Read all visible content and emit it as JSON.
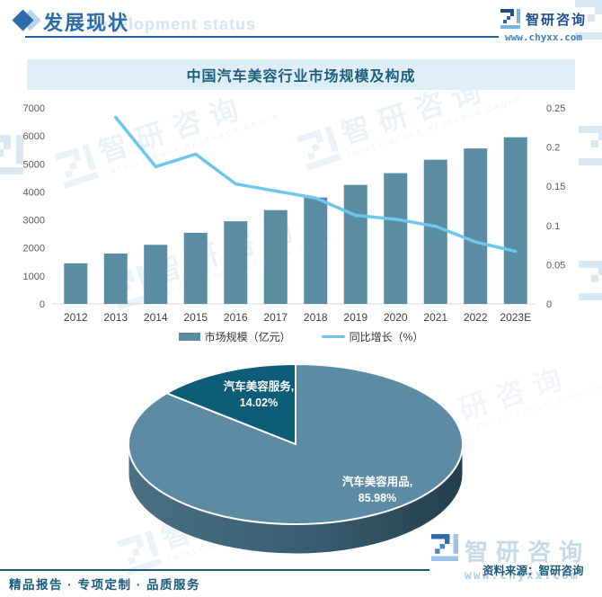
{
  "header": {
    "title_cn": "发展现状",
    "title_en": "Development status"
  },
  "brand": {
    "name": "智研咨询",
    "url": "www.chyxx.com",
    "watermark_en": "INTELLIGENCE RESEARCH GROUP"
  },
  "title_banner": "中国汽车美容行业市场规模及构成",
  "chart_data": [
    {
      "type": "bar",
      "title": "中国汽车美容行业市场规模及构成",
      "categories": [
        "2012",
        "2013",
        "2014",
        "2015",
        "2016",
        "2017",
        "2018",
        "2019",
        "2020",
        "2021",
        "2022",
        "2023E"
      ],
      "series": [
        {
          "name": "市场规模（亿元）",
          "type": "bar",
          "axis": "left",
          "color": "#5a8da1",
          "values": [
            1450,
            1800,
            2110,
            2540,
            2950,
            3350,
            3800,
            4250,
            4670,
            5150,
            5550,
            5950
          ]
        },
        {
          "name": "同比增长（%）",
          "type": "line",
          "axis": "right",
          "color": "#6ec6ed",
          "values": [
            null,
            0.238,
            0.175,
            0.191,
            0.153,
            0.144,
            0.135,
            0.113,
            0.108,
            0.099,
            0.079,
            0.067
          ]
        }
      ],
      "left_axis": {
        "min": 0,
        "max": 7000,
        "step": 1000
      },
      "right_axis": {
        "min": 0,
        "max": 0.25,
        "step": 0.05
      },
      "grid": false,
      "legend_position": "bottom"
    },
    {
      "type": "pie",
      "labels": [
        "汽车美容服务",
        "汽车美容用品"
      ],
      "values": [
        14.02,
        85.98
      ],
      "colors": [
        "#0d5c78",
        "#5e8ba4"
      ],
      "style": "3d",
      "label_format": "{name}, {value}%"
    }
  ],
  "footer": {
    "services": "精品报告 · 专项定制 · 品质服务",
    "source": "资料来源：智研咨询"
  }
}
